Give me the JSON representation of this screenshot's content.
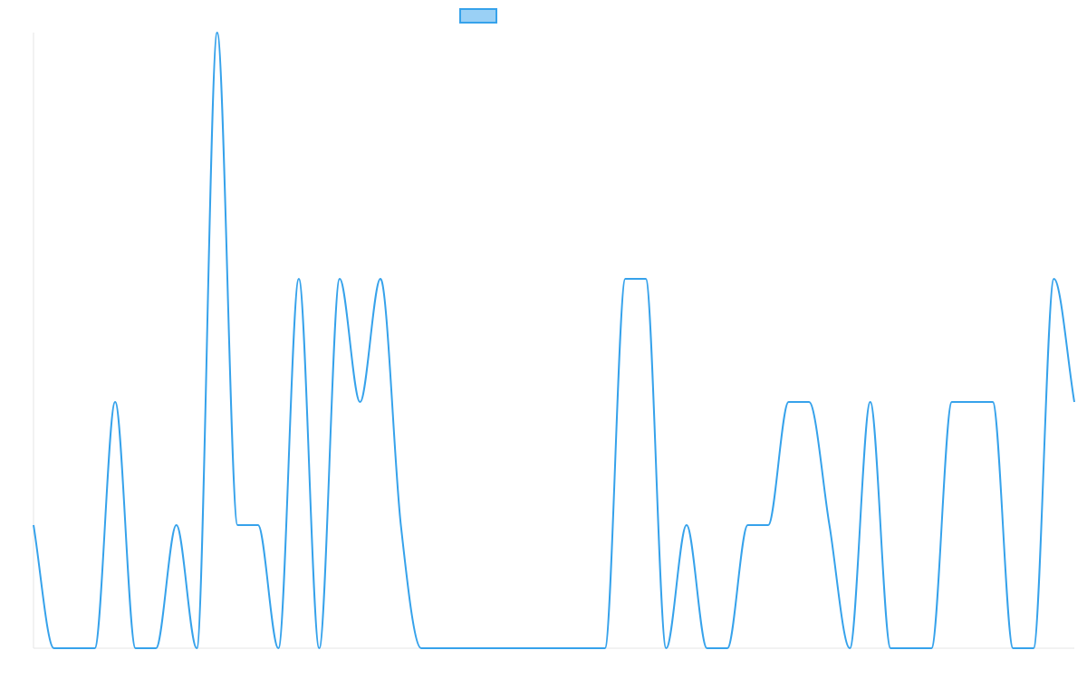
{
  "chart_data": {
    "type": "line",
    "title": "",
    "xlabel": "",
    "ylabel": "",
    "grid": false,
    "legend_position": "top-center",
    "ylim": [
      0,
      5
    ],
    "x": [
      0,
      1,
      2,
      3,
      4,
      5,
      6,
      7,
      8,
      9,
      10,
      11,
      12,
      13,
      14,
      15,
      16,
      17,
      18,
      19,
      20,
      21,
      22,
      23,
      24,
      25,
      26,
      27,
      28,
      29,
      30,
      31,
      32,
      33,
      34,
      35,
      36,
      37,
      38,
      39,
      40,
      41,
      42,
      43,
      44,
      45,
      46,
      47,
      48,
      49,
      50,
      51
    ],
    "series": [
      {
        "values": [
          1,
          0,
          0,
          0,
          2,
          0,
          0,
          1,
          0,
          5,
          1,
          1,
          0,
          3,
          0,
          3,
          2,
          3,
          1,
          0,
          0,
          0,
          0,
          0,
          0,
          0,
          0,
          0,
          0,
          3,
          3,
          0,
          1,
          0,
          0,
          1,
          1,
          2,
          2,
          1,
          0,
          2,
          0,
          0,
          0,
          2,
          2,
          2,
          0,
          0,
          3,
          2
        ],
        "line_color": "#36A2EB",
        "fill_color": "rgba(54,162,235,0.5)"
      }
    ],
    "axis_color": "#e5e5e5"
  }
}
